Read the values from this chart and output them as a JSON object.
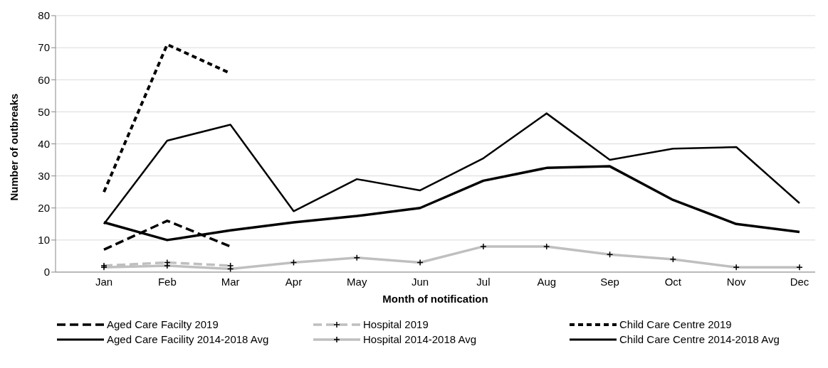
{
  "chart_data": {
    "type": "line",
    "xlabel": "Month of notification",
    "ylabel": "Number of outbreaks",
    "categories": [
      "Jan",
      "Feb",
      "Mar",
      "Apr",
      "May",
      "Jun",
      "Jul",
      "Aug",
      "Sep",
      "Oct",
      "Nov",
      "Dec"
    ],
    "ylim": [
      0,
      80
    ],
    "yticks": [
      0,
      10,
      20,
      30,
      40,
      50,
      60,
      70,
      80
    ],
    "grid": "y",
    "legend": "bottom",
    "series": [
      {
        "name": "Aged Care Facilty 2019",
        "color": "#000000",
        "line_style": "dashed",
        "marker": "none",
        "values": [
          7,
          16,
          8,
          null,
          null,
          null,
          null,
          null,
          null,
          null,
          null,
          null
        ]
      },
      {
        "name": "Hospital 2019",
        "color": "#bfbfbf",
        "line_style": "dashed",
        "marker": "cross",
        "values": [
          2,
          3,
          2,
          null,
          null,
          null,
          null,
          null,
          null,
          null,
          null,
          null
        ]
      },
      {
        "name": "Child Care Centre 2019",
        "color": "#000000",
        "line_style": "dotted",
        "marker": "none",
        "values": [
          25,
          71,
          62,
          null,
          null,
          null,
          null,
          null,
          null,
          null,
          null,
          null
        ]
      },
      {
        "name": "Aged Care Facility 2014-2018 Avg",
        "color": "#000000",
        "line_style": "solid",
        "marker": "none",
        "values": [
          15.5,
          10,
          13,
          15.5,
          17.5,
          20,
          28.5,
          32.5,
          33,
          22.5,
          15,
          12.5
        ]
      },
      {
        "name": "Hospital 2014-2018 Avg",
        "color": "#bfbfbf",
        "line_style": "solid",
        "marker": "cross",
        "values": [
          1.5,
          2,
          1,
          3,
          4.5,
          3,
          8,
          8,
          5.5,
          4,
          1.5,
          1.5
        ]
      },
      {
        "name": "Child Care Centre 2014-2018 Avg",
        "color": "#000000",
        "line_style": "solid",
        "marker": "none",
        "values": [
          15,
          41,
          46,
          19,
          29,
          25.5,
          35.5,
          49.5,
          35,
          38.5,
          39,
          21.5
        ]
      }
    ]
  }
}
